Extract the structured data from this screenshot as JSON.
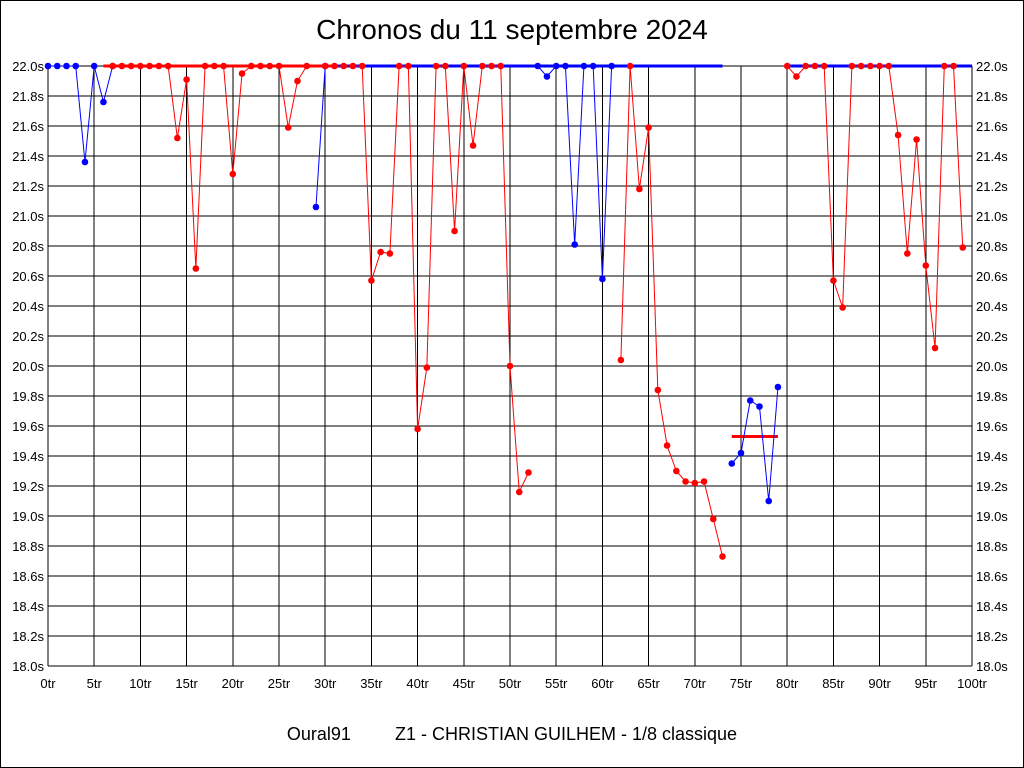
{
  "chart_data": {
    "type": "line",
    "title": "Chronos du 11 septembre 2024",
    "footer": {
      "club": "Oural91",
      "details": "Z1 - CHRISTIAN GUILHEM - 1/8 classique"
    },
    "xlabel": "",
    "ylabel": "",
    "xlim": [
      0,
      100
    ],
    "ylim": [
      18.0,
      22.0
    ],
    "x_ticks": [
      "0tr",
      "5tr",
      "10tr",
      "15tr",
      "20tr",
      "25tr",
      "30tr",
      "35tr",
      "40tr",
      "45tr",
      "50tr",
      "55tr",
      "60tr",
      "65tr",
      "70tr",
      "75tr",
      "80tr",
      "85tr",
      "90tr",
      "95tr",
      "100tr"
    ],
    "y_ticks": [
      "22.0s",
      "21.8s",
      "21.6s",
      "21.4s",
      "21.2s",
      "21.0s",
      "20.8s",
      "20.6s",
      "20.4s",
      "20.2s",
      "20.0s",
      "19.8s",
      "19.6s",
      "19.4s",
      "19.2s",
      "19.0s",
      "18.8s",
      "18.6s",
      "18.4s",
      "18.2s",
      "18.0s"
    ],
    "grid": true,
    "y_ticks_both_sides": true,
    "colors": {
      "red": "#ff0000",
      "blue": "#0000ff"
    },
    "series": [
      {
        "color": "#0000ff",
        "points": [
          [
            0,
            22.0
          ],
          [
            1,
            22.0
          ],
          [
            2,
            22.0
          ],
          [
            3,
            22.0
          ],
          [
            4,
            21.36
          ],
          [
            5,
            22.0
          ],
          [
            6,
            21.76
          ],
          [
            7,
            22.0
          ]
        ]
      },
      {
        "color": "#ff0000",
        "points": [
          [
            7,
            22.0
          ],
          [
            8,
            22.0
          ],
          [
            9,
            22.0
          ],
          [
            10,
            22.0
          ],
          [
            11,
            22.0
          ],
          [
            12,
            22.0
          ],
          [
            13,
            22.0
          ],
          [
            14,
            21.52
          ],
          [
            15,
            21.91
          ],
          [
            16,
            20.65
          ],
          [
            17,
            22.0
          ],
          [
            18,
            22.0
          ],
          [
            19,
            22.0
          ],
          [
            20,
            21.28
          ],
          [
            21,
            21.95
          ],
          [
            22,
            22.0
          ],
          [
            23,
            22.0
          ],
          [
            24,
            22.0
          ],
          [
            25,
            22.0
          ],
          [
            26,
            21.59
          ],
          [
            27,
            21.9
          ],
          [
            28,
            22.0
          ]
        ]
      },
      {
        "color": "#0000ff",
        "points": [
          [
            29,
            21.06
          ],
          [
            30,
            22.0
          ]
        ]
      },
      {
        "color": "#ff0000",
        "points": [
          [
            30,
            22.0
          ],
          [
            31,
            22.0
          ],
          [
            32,
            22.0
          ],
          [
            33,
            22.0
          ],
          [
            34,
            22.0
          ],
          [
            35,
            20.57
          ],
          [
            36,
            20.76
          ],
          [
            37,
            20.75
          ],
          [
            38,
            22.0
          ],
          [
            39,
            22.0
          ],
          [
            40,
            19.58
          ],
          [
            41,
            19.99
          ],
          [
            42,
            22.0
          ],
          [
            43,
            22.0
          ],
          [
            44,
            20.9
          ],
          [
            45,
            22.0
          ],
          [
            46,
            21.47
          ],
          [
            47,
            22.0
          ],
          [
            48,
            22.0
          ],
          [
            49,
            22.0
          ],
          [
            50,
            20.0
          ],
          [
            51,
            19.16
          ],
          [
            52,
            19.29
          ]
        ]
      },
      {
        "color": "#0000ff",
        "points": [
          [
            53,
            22.0
          ],
          [
            54,
            21.93
          ],
          [
            55,
            22.0
          ],
          [
            56,
            22.0
          ],
          [
            57,
            20.81
          ],
          [
            58,
            22.0
          ],
          [
            59,
            22.0
          ],
          [
            60,
            20.58
          ],
          [
            61,
            22.0
          ]
        ]
      },
      {
        "color": "#ff0000",
        "points": [
          [
            62,
            20.04
          ],
          [
            63,
            22.0
          ],
          [
            64,
            21.18
          ],
          [
            65,
            21.59
          ],
          [
            66,
            19.84
          ],
          [
            67,
            19.47
          ],
          [
            68,
            19.3
          ],
          [
            69,
            19.23
          ],
          [
            70,
            19.22
          ],
          [
            71,
            19.23
          ],
          [
            72,
            18.98
          ],
          [
            73,
            18.73
          ]
        ]
      },
      {
        "color": "#0000ff",
        "points": [
          [
            74,
            19.35
          ],
          [
            75,
            19.42
          ],
          [
            76,
            19.77
          ],
          [
            77,
            19.73
          ],
          [
            78,
            19.1
          ],
          [
            79,
            19.86
          ]
        ]
      },
      {
        "color": "#ff0000",
        "points": [
          [
            80,
            22.0
          ],
          [
            81,
            21.93
          ],
          [
            82,
            22.0
          ],
          [
            83,
            22.0
          ],
          [
            84,
            22.0
          ],
          [
            85,
            20.57
          ],
          [
            86,
            20.39
          ],
          [
            87,
            22.0
          ],
          [
            88,
            22.0
          ],
          [
            89,
            22.0
          ],
          [
            90,
            22.0
          ],
          [
            91,
            22.0
          ],
          [
            92,
            21.54
          ],
          [
            93,
            20.75
          ],
          [
            94,
            21.51
          ],
          [
            95,
            20.67
          ],
          [
            96,
            20.12
          ],
          [
            97,
            22.0
          ],
          [
            98,
            22.0
          ],
          [
            99,
            20.79
          ]
        ]
      }
    ],
    "reference_lines": [
      {
        "color": "#ff0000",
        "x": [
          6,
          31
        ],
        "y": 22.0
      },
      {
        "color": "#0000ff",
        "x": [
          31,
          73
        ],
        "y": 22.0
      },
      {
        "color": "#0000ff",
        "x": [
          80,
          100
        ],
        "y": 22.0
      },
      {
        "color": "#ff0000",
        "x": [
          74,
          79
        ],
        "y": 19.53
      }
    ]
  }
}
